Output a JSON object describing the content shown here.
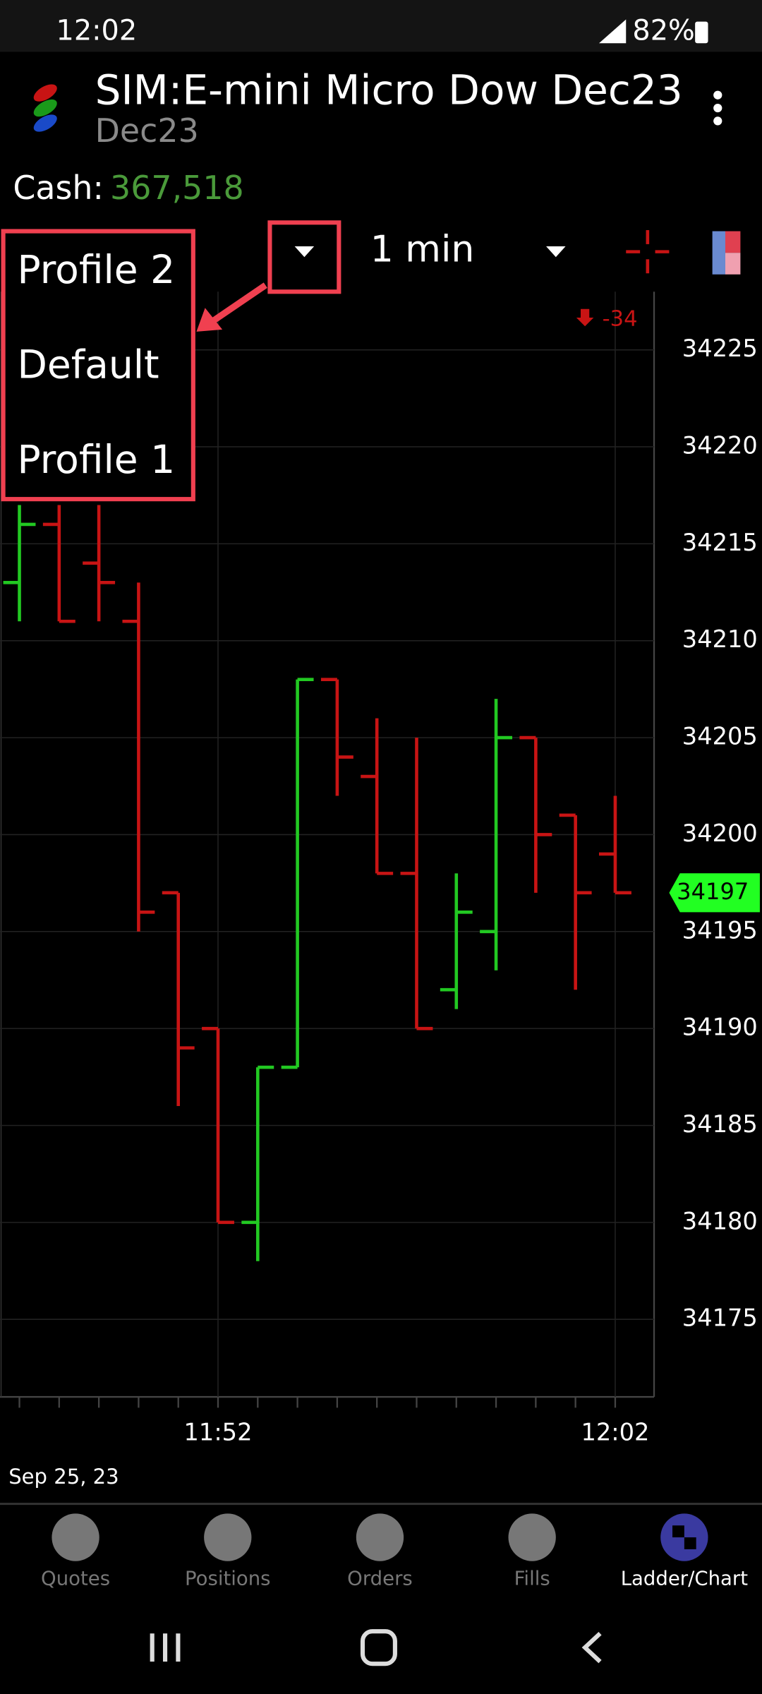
{
  "status_bar": {
    "time": "12:02",
    "battery": "82%"
  },
  "header": {
    "title": "SIM:E-mini Micro Dow Dec23",
    "subtitle": "Dec23"
  },
  "account": {
    "label": "Cash:",
    "value": "367,518"
  },
  "toolbar": {
    "interval": "1 min"
  },
  "profile_menu": {
    "items": [
      "Profile 2",
      "Default",
      "Profile 1"
    ]
  },
  "chart_data": {
    "type": "ohlc",
    "categories": [
      null,
      null,
      null,
      null,
      null,
      "11:52",
      null,
      null,
      null,
      null,
      null,
      null,
      null,
      null,
      null,
      "12:02"
    ],
    "open": [
      34213,
      34216,
      34214,
      34211,
      34197,
      34190,
      34180,
      34188,
      34208,
      34203,
      34198,
      34192,
      34195,
      34205,
      34201,
      34199
    ],
    "high": [
      34217,
      34217,
      34217,
      34213,
      34197,
      34190,
      34188,
      34208,
      34208,
      34206,
      34205,
      34198,
      34207,
      34205,
      34201,
      34202
    ],
    "low": [
      34211,
      34211,
      34211,
      34195,
      34186,
      34180,
      34178,
      34188,
      34202,
      34198,
      34190,
      34191,
      34193,
      34197,
      34192,
      34197
    ],
    "close": [
      34216,
      34211,
      34213,
      34196,
      34189,
      34180,
      34188,
      34208,
      34204,
      34198,
      34190,
      34196,
      34205,
      34200,
      34197,
      34197
    ],
    "up_color": "#22c922",
    "down_color": "#c81414",
    "last_price": 34197,
    "change": -34,
    "ylim": [
      34171,
      34228
    ],
    "yticks": [
      34175,
      34180,
      34185,
      34190,
      34195,
      34200,
      34205,
      34210,
      34215,
      34220,
      34225
    ],
    "grid": true,
    "date": "Sep 25, 23"
  },
  "bottom_nav": {
    "items": [
      "Quotes",
      "Positions",
      "Orders",
      "Fills",
      "Ladder/Chart"
    ],
    "active": 4
  }
}
